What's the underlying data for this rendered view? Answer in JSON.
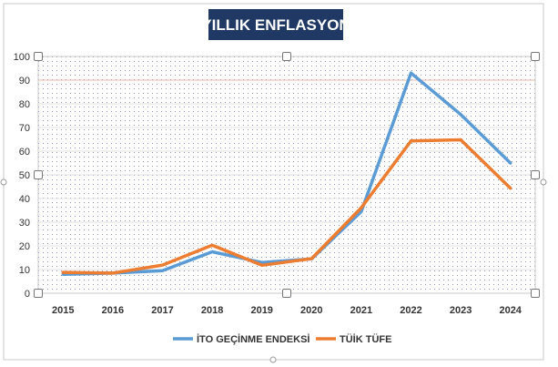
{
  "chart_data": {
    "type": "line",
    "title": "YILLIK ENFLASYON",
    "x": [
      "2015",
      "2016",
      "2017",
      "2018",
      "2019",
      "2020",
      "2021",
      "2022",
      "2023",
      "2024"
    ],
    "series": [
      {
        "name": "İTO GEÇİNME ENDEKSİ",
        "color": "#5b9bd5",
        "values": [
          8,
          8.5,
          9.5,
          17.5,
          13,
          14.5,
          34.5,
          93,
          75.5,
          55
        ]
      },
      {
        "name": "TÜİK TÜFE",
        "color": "#ed7d31",
        "values": [
          8.8,
          8.5,
          11.9,
          20.3,
          11.8,
          14.6,
          36.1,
          64.3,
          64.8,
          44.4
        ]
      }
    ],
    "ylim": [
      0,
      100
    ],
    "yticks": [
      "0",
      "10",
      "20",
      "30",
      "40",
      "50",
      "60",
      "70",
      "80",
      "90",
      "100"
    ],
    "xlabel": "",
    "ylabel": "",
    "grid": true,
    "legend_position": "bottom",
    "title_bg": "#1f3864"
  }
}
